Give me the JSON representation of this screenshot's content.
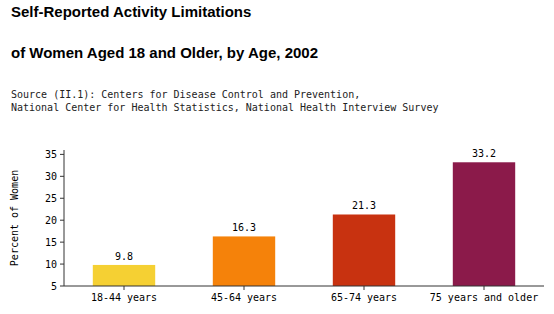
{
  "chart_data": {
    "type": "bar",
    "title": "Self-Reported Activity Limitations",
    "subtitle": "of Women Aged 18 and Older, by Age, 2002",
    "source": "Source (II.1): Centers for Disease Control and Prevention,\nNational Center for Health Statistics, National Health Interview Survey",
    "categories": [
      "18-44 years",
      "45-64 years",
      "65-74 years",
      "75 years and older"
    ],
    "values": [
      9.8,
      16.3,
      21.3,
      33.2
    ],
    "colors": [
      "#F5D033",
      "#F5820A",
      "#C83210",
      "#8B1A4A"
    ],
    "ylabel": "Percent of Women",
    "ylim": [
      5,
      36
    ],
    "yticks": [
      5,
      10,
      15,
      20,
      25,
      30,
      35
    ],
    "grid": false,
    "data_labels": true
  }
}
